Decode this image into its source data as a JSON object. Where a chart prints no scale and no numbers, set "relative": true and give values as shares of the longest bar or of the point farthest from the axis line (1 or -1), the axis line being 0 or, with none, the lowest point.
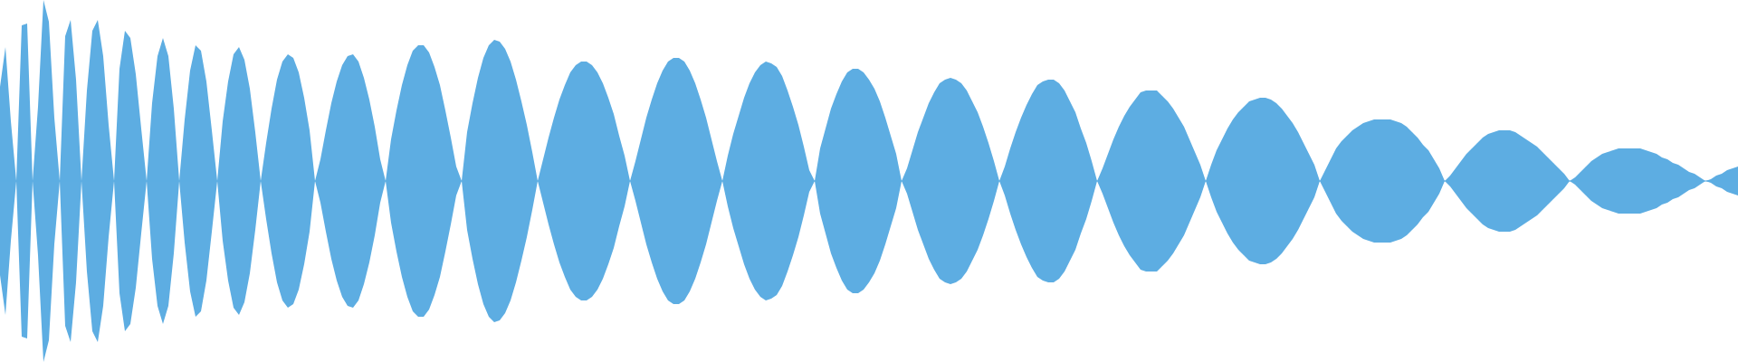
{
  "chart_data": {
    "type": "area",
    "relative": true,
    "tick_labels": false,
    "ref_lines": [
      {
        "axis": "y",
        "value": 0,
        "color": "#5dade2"
      }
    ],
    "categories": [
      null,
      null,
      null,
      null,
      null,
      null,
      null,
      null,
      null,
      null,
      null,
      null,
      null,
      null,
      null,
      null,
      null,
      null,
      null,
      null,
      null,
      null,
      null,
      null,
      null,
      null,
      null,
      null,
      null,
      null,
      null,
      null,
      null,
      null,
      null,
      null,
      null,
      null,
      null,
      null,
      null,
      null,
      null,
      null,
      null,
      null,
      null,
      null,
      null,
      null,
      null,
      null,
      null,
      null,
      null,
      null,
      null,
      null,
      null,
      null,
      null,
      null,
      null,
      null,
      null,
      null,
      null,
      null,
      null,
      null,
      null,
      null,
      null,
      null,
      null,
      null,
      null,
      null,
      null,
      null,
      null,
      null,
      null,
      null,
      null,
      null,
      null,
      null,
      null,
      null,
      null,
      null,
      null,
      null,
      null,
      null,
      null,
      null,
      null,
      null,
      null,
      null,
      null,
      null,
      null,
      null,
      null,
      null,
      null,
      null,
      null,
      null,
      null,
      null,
      null,
      null,
      null,
      null,
      null,
      null,
      null,
      null,
      null,
      null,
      null,
      null,
      null,
      null,
      null,
      null,
      null,
      null,
      null,
      null,
      null,
      null,
      null,
      null,
      null,
      null,
      null,
      null,
      null,
      null,
      null,
      null,
      null,
      null,
      null,
      null,
      null,
      null,
      null,
      null,
      null,
      null,
      null,
      null,
      null,
      null,
      null,
      null,
      null,
      null,
      null,
      null,
      null,
      null,
      null,
      null,
      null,
      null,
      null,
      null,
      null,
      null,
      null,
      null,
      null,
      null,
      null,
      null,
      null,
      null,
      null,
      null,
      null,
      null,
      null,
      null,
      null,
      null,
      null,
      null,
      null,
      null,
      null,
      null,
      null,
      null,
      null,
      null,
      null,
      null,
      null,
      null,
      null,
      null,
      null,
      null,
      null,
      null,
      null,
      null,
      null,
      null,
      null,
      null,
      null,
      null,
      null,
      null,
      null,
      null,
      null,
      null,
      null,
      null,
      null,
      null,
      null,
      null,
      null,
      null,
      null,
      null,
      null,
      null,
      null,
      null,
      null,
      null,
      null,
      null,
      null,
      null,
      null,
      null,
      null,
      null,
      null,
      null,
      null,
      null,
      null,
      null,
      null,
      null,
      null,
      null,
      null,
      null,
      null,
      null,
      null,
      null,
      null,
      null,
      null,
      null,
      null,
      null,
      null,
      null,
      null,
      null,
      null,
      null,
      null,
      null,
      null,
      null,
      null,
      null,
      null,
      null,
      null,
      null,
      null,
      null,
      null,
      null,
      null,
      null,
      null,
      null,
      null,
      null,
      null,
      null,
      null,
      null,
      null,
      null,
      null,
      null,
      null,
      null,
      null,
      null,
      null,
      null,
      null,
      null,
      null,
      null,
      null,
      null,
      null,
      null,
      null
    ],
    "series": [
      {
        "color": "#5dade2",
        "values": [
          0.52,
          0.74,
          0.33,
          0,
          0.86,
          0.87,
          0,
          0.41,
          1,
          0.88,
          0.35,
          0,
          0.8,
          0.89,
          0.56,
          0,
          0.5,
          0.83,
          0.89,
          0.69,
          0.31,
          0,
          0.62,
          0.83,
          0.79,
          0.59,
          0.29,
          0,
          0.43,
          0.69,
          0.79,
          0.69,
          0.4,
          0,
          0.34,
          0.61,
          0.75,
          0.72,
          0.55,
          0.28,
          0,
          0.33,
          0.55,
          0.7,
          0.74,
          0.67,
          0.51,
          0.27,
          0,
          0.21,
          0.4,
          0.56,
          0.66,
          0.7,
          0.68,
          0.6,
          0.46,
          0.28,
          0,
          0.12,
          0.28,
          0.43,
          0.55,
          0.64,
          0.69,
          0.7,
          0.66,
          0.57,
          0.45,
          0.3,
          0.12,
          0,
          0.23,
          0.39,
          0.53,
          0.64,
          0.72,
          0.75,
          0.75,
          0.71,
          0.63,
          0.53,
          0.39,
          0.24,
          0.08,
          0,
          0.27,
          0.43,
          0.57,
          0.68,
          0.75,
          0.78,
          0.77,
          0.73,
          0.66,
          0.56,
          0.44,
          0.31,
          0.16,
          0,
          0.12,
          0.24,
          0.35,
          0.45,
          0.53,
          0.6,
          0.64,
          0.66,
          0.66,
          0.64,
          0.6,
          0.54,
          0.46,
          0.37,
          0.25,
          0.14,
          0,
          0.11,
          0.23,
          0.35,
          0.45,
          0.54,
          0.61,
          0.66,
          0.68,
          0.68,
          0.66,
          0.61,
          0.54,
          0.45,
          0.35,
          0.23,
          0.11,
          0,
          0.14,
          0.26,
          0.36,
          0.46,
          0.54,
          0.6,
          0.64,
          0.66,
          0.65,
          0.63,
          0.58,
          0.5,
          0.41,
          0.31,
          0.19,
          0.06,
          0,
          0.18,
          0.29,
          0.4,
          0.48,
          0.55,
          0.6,
          0.62,
          0.62,
          0.6,
          0.56,
          0.51,
          0.44,
          0.35,
          0.25,
          0.15,
          0,
          0.07,
          0.17,
          0.27,
          0.35,
          0.43,
          0.49,
          0.54,
          0.56,
          0.57,
          0.56,
          0.54,
          0.5,
          0.44,
          0.38,
          0.3,
          0.21,
          0.11,
          0,
          0.08,
          0.18,
          0.27,
          0.35,
          0.42,
          0.48,
          0.53,
          0.55,
          0.56,
          0.56,
          0.54,
          0.5,
          0.44,
          0.38,
          0.29,
          0.21,
          0.11,
          0,
          0.07,
          0.15,
          0.23,
          0.3,
          0.36,
          0.41,
          0.45,
          0.49,
          0.5,
          0.5,
          0.5,
          0.47,
          0.44,
          0.4,
          0.35,
          0.3,
          0.23,
          0.16,
          0.09,
          0,
          0.09,
          0.17,
          0.23,
          0.29,
          0.34,
          0.38,
          0.41,
          0.44,
          0.45,
          0.46,
          0.46,
          0.45,
          0.43,
          0.4,
          0.36,
          0.32,
          0.27,
          0.21,
          0.15,
          0.09,
          0,
          0.06,
          0.12,
          0.18,
          0.22,
          0.25,
          0.28,
          0.3,
          0.32,
          0.33,
          0.34,
          0.34,
          0.34,
          0.34,
          0.33,
          0.32,
          0.3,
          0.27,
          0.24,
          0.2,
          0.17,
          0.12,
          0.07,
          0,
          0.03,
          0.07,
          0.11,
          0.15,
          0.18,
          0.21,
          0.24,
          0.26,
          0.27,
          0.28,
          0.28,
          0.28,
          0.27,
          0.25,
          0.23,
          0.21,
          0.19,
          0.16,
          0.13,
          0.1,
          0.07,
          0.04,
          0,
          0.02,
          0.05,
          0.08,
          0.11,
          0.13,
          0.15,
          0.16,
          0.17,
          0.18,
          0.18,
          0.18,
          0.18,
          0.18,
          0.17,
          0.16,
          0.15,
          0.13,
          0.12,
          0.1,
          0.09,
          0.07,
          0.05,
          0.04,
          0.02,
          0,
          0.01,
          0.03,
          0.04,
          0.06,
          0.07,
          0.08
        ]
      },
      {
        "color": "#5dade2",
        "values": [
          -0.52,
          -0.74,
          -0.33,
          0,
          -0.86,
          -0.87,
          0,
          -0.41,
          -1,
          -0.88,
          -0.35,
          0,
          -0.8,
          -0.89,
          -0.56,
          0,
          -0.5,
          -0.83,
          -0.89,
          -0.69,
          -0.31,
          0,
          -0.62,
          -0.83,
          -0.79,
          -0.59,
          -0.29,
          0,
          -0.43,
          -0.69,
          -0.79,
          -0.69,
          -0.4,
          0,
          -0.34,
          -0.61,
          -0.75,
          -0.72,
          -0.55,
          -0.28,
          0,
          -0.33,
          -0.55,
          -0.7,
          -0.74,
          -0.67,
          -0.51,
          -0.27,
          0,
          -0.21,
          -0.4,
          -0.56,
          -0.66,
          -0.7,
          -0.68,
          -0.6,
          -0.46,
          -0.28,
          0,
          -0.12,
          -0.28,
          -0.43,
          -0.55,
          -0.64,
          -0.69,
          -0.7,
          -0.66,
          -0.57,
          -0.45,
          -0.3,
          -0.12,
          0,
          -0.23,
          -0.39,
          -0.53,
          -0.64,
          -0.72,
          -0.75,
          -0.75,
          -0.71,
          -0.63,
          -0.53,
          -0.39,
          -0.24,
          -0.08,
          0,
          -0.27,
          -0.43,
          -0.57,
          -0.68,
          -0.75,
          -0.78,
          -0.77,
          -0.73,
          -0.66,
          -0.56,
          -0.44,
          -0.31,
          -0.16,
          0,
          -0.12,
          -0.24,
          -0.35,
          -0.45,
          -0.53,
          -0.6,
          -0.64,
          -0.66,
          -0.66,
          -0.64,
          -0.6,
          -0.54,
          -0.46,
          -0.37,
          -0.25,
          -0.14,
          0,
          -0.11,
          -0.23,
          -0.35,
          -0.45,
          -0.54,
          -0.61,
          -0.66,
          -0.68,
          -0.68,
          -0.66,
          -0.61,
          -0.54,
          -0.45,
          -0.35,
          -0.23,
          -0.11,
          0,
          -0.14,
          -0.26,
          -0.36,
          -0.46,
          -0.54,
          -0.6,
          -0.64,
          -0.66,
          -0.65,
          -0.63,
          -0.58,
          -0.5,
          -0.41,
          -0.31,
          -0.19,
          -0.06,
          0,
          -0.18,
          -0.29,
          -0.4,
          -0.48,
          -0.55,
          -0.6,
          -0.62,
          -0.62,
          -0.6,
          -0.56,
          -0.51,
          -0.44,
          -0.35,
          -0.25,
          -0.15,
          0,
          -0.07,
          -0.17,
          -0.27,
          -0.35,
          -0.43,
          -0.49,
          -0.54,
          -0.56,
          -0.57,
          -0.56,
          -0.54,
          -0.5,
          -0.44,
          -0.38,
          -0.3,
          -0.21,
          -0.11,
          0,
          -0.08,
          -0.18,
          -0.27,
          -0.35,
          -0.42,
          -0.48,
          -0.53,
          -0.55,
          -0.56,
          -0.56,
          -0.54,
          -0.5,
          -0.44,
          -0.38,
          -0.29,
          -0.21,
          -0.11,
          0,
          -0.07,
          -0.15,
          -0.23,
          -0.3,
          -0.36,
          -0.41,
          -0.45,
          -0.49,
          -0.5,
          -0.5,
          -0.5,
          -0.47,
          -0.44,
          -0.4,
          -0.35,
          -0.3,
          -0.23,
          -0.16,
          -0.09,
          0,
          -0.09,
          -0.17,
          -0.23,
          -0.29,
          -0.34,
          -0.38,
          -0.41,
          -0.44,
          -0.45,
          -0.46,
          -0.46,
          -0.45,
          -0.43,
          -0.4,
          -0.36,
          -0.32,
          -0.27,
          -0.21,
          -0.15,
          -0.09,
          0,
          -0.06,
          -0.12,
          -0.18,
          -0.22,
          -0.25,
          -0.28,
          -0.3,
          -0.32,
          -0.33,
          -0.34,
          -0.34,
          -0.34,
          -0.34,
          -0.33,
          -0.32,
          -0.3,
          -0.27,
          -0.24,
          -0.2,
          -0.17,
          -0.12,
          -0.07,
          0,
          -0.03,
          -0.07,
          -0.11,
          -0.15,
          -0.18,
          -0.21,
          -0.24,
          -0.26,
          -0.27,
          -0.28,
          -0.28,
          -0.28,
          -0.27,
          -0.25,
          -0.23,
          -0.21,
          -0.19,
          -0.16,
          -0.13,
          -0.1,
          -0.07,
          -0.04,
          0,
          -0.02,
          -0.05,
          -0.08,
          -0.11,
          -0.13,
          -0.15,
          -0.16,
          -0.17,
          -0.18,
          -0.18,
          -0.18,
          -0.18,
          -0.18,
          -0.17,
          -0.16,
          -0.15,
          -0.13,
          -0.12,
          -0.1,
          -0.09,
          -0.07,
          -0.05,
          -0.04,
          -0.02,
          0,
          -0.01,
          -0.03,
          -0.04,
          -0.06,
          -0.07,
          -0.08
        ]
      }
    ]
  }
}
